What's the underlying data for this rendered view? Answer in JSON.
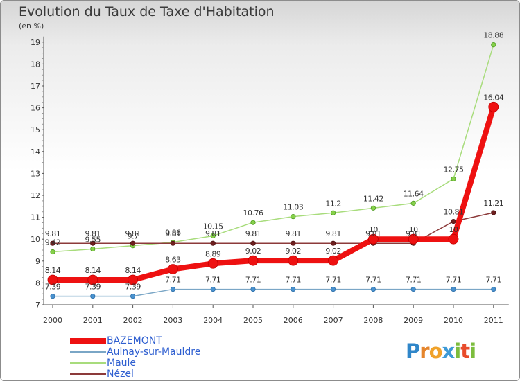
{
  "chart_data": {
    "type": "line",
    "title": "Evolution du Taux de Taxe d'Habitation",
    "subtitle": "(en %)",
    "x": [
      "2000",
      "2001",
      "2002",
      "2003",
      "2004",
      "2005",
      "2006",
      "2007",
      "2008",
      "2009",
      "2010",
      "2011"
    ],
    "ylim": [
      7,
      19
    ],
    "yticks": [
      "7",
      "8",
      "9",
      "10",
      "11",
      "12",
      "13",
      "14",
      "15",
      "16",
      "17",
      "18",
      "19"
    ],
    "grid": false,
    "legend_position": "bottom-left",
    "series": [
      {
        "name": "BAZEMONT",
        "color": "#ee1111",
        "values": [
          8.14,
          8.14,
          8.14,
          8.63,
          8.89,
          9.02,
          9.02,
          9.02,
          10,
          10,
          10,
          16.04
        ],
        "labels": [
          "8.14",
          "8.14",
          "8.14",
          "8.63",
          "8.89",
          "9.02",
          "9.02",
          "9.02",
          "10",
          "10",
          "10",
          "16.04"
        ]
      },
      {
        "name": "Aulnay-sur-Mauldre",
        "color": "#7aa6c6",
        "values": [
          7.39,
          7.39,
          7.39,
          7.71,
          7.71,
          7.71,
          7.71,
          7.71,
          7.71,
          7.71,
          7.71,
          7.71
        ],
        "labels": [
          "7.39",
          "7.39",
          "7.39",
          "7.71",
          "7.71",
          "7.71",
          "7.71",
          "7.71",
          "7.71",
          "7.71",
          "7.71",
          "7.71"
        ]
      },
      {
        "name": "Maule",
        "color": "#a8dc7c",
        "values": [
          9.42,
          9.55,
          9.7,
          9.86,
          10.15,
          10.76,
          11.03,
          11.2,
          11.42,
          11.64,
          12.75,
          18.88
        ],
        "labels": [
          "9.42",
          "9.55",
          "9.7",
          "9.86",
          "10.15",
          "10.76",
          "11.03",
          "11.2",
          "11.42",
          "11.64",
          "12.75",
          "18.88"
        ]
      },
      {
        "name": "Nézel",
        "color": "#8c3a3a",
        "values": [
          9.81,
          9.81,
          9.81,
          9.81,
          9.81,
          9.81,
          9.81,
          9.81,
          9.81,
          9.81,
          10.81,
          11.21
        ],
        "labels": [
          "9.81",
          "9.81",
          "9.81",
          "9.81",
          "9.81",
          "9.81",
          "9.81",
          "9.81",
          "9.81",
          "9.81",
          "10.81",
          "11.21"
        ]
      }
    ]
  },
  "logo": {
    "letters": [
      "P",
      "r",
      "o",
      "x",
      "i",
      "t",
      "i"
    ]
  }
}
